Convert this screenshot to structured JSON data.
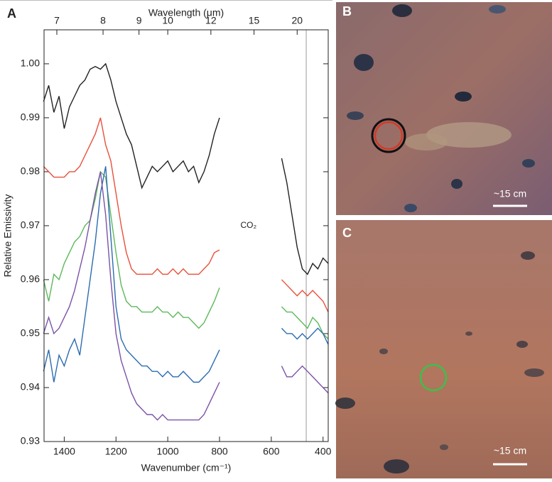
{
  "chart_data": {
    "type": "line",
    "x2label": "Wavelength (μm)",
    "xlabel": "Wavenumber (cm⁻¹)",
    "ylabel": "Relative Emissivity",
    "annotation": {
      "text": "CO₂",
      "x": 688,
      "y": 0.97
    },
    "vlines": [
      465
    ],
    "x": [
      1480,
      1460,
      1440,
      1420,
      1400,
      1380,
      1360,
      1340,
      1320,
      1300,
      1280,
      1260,
      1240,
      1220,
      1200,
      1180,
      1160,
      1140,
      1120,
      1100,
      1080,
      1060,
      1040,
      1020,
      1000,
      980,
      960,
      940,
      920,
      900,
      880,
      860,
      840,
      820,
      800,
      680,
      560,
      540,
      520,
      500,
      480,
      460,
      440,
      420,
      400,
      380
    ],
    "series": [
      {
        "color": "#222222",
        "values": [
          0.993,
          0.996,
          0.991,
          0.994,
          0.988,
          0.992,
          0.994,
          0.996,
          0.997,
          0.999,
          0.9995,
          0.999,
          1.0,
          0.997,
          0.993,
          0.99,
          0.987,
          0.985,
          0.981,
          0.977,
          0.979,
          0.981,
          0.98,
          0.981,
          0.982,
          0.98,
          0.981,
          0.982,
          0.98,
          0.981,
          0.978,
          0.98,
          0.983,
          0.987,
          0.99,
          null,
          0.9825,
          0.978,
          0.972,
          0.966,
          0.962,
          0.961,
          0.963,
          0.962,
          0.964,
          0.963
        ]
      },
      {
        "color": "#e8503a",
        "values": [
          0.981,
          0.98,
          0.979,
          0.979,
          0.979,
          0.98,
          0.98,
          0.981,
          0.983,
          0.985,
          0.987,
          0.99,
          0.985,
          0.982,
          0.976,
          0.97,
          0.965,
          0.962,
          0.961,
          0.961,
          0.961,
          0.961,
          0.962,
          0.961,
          0.961,
          0.962,
          0.961,
          0.962,
          0.961,
          0.961,
          0.961,
          0.962,
          0.963,
          0.965,
          0.9655,
          null,
          0.96,
          0.959,
          0.958,
          0.957,
          0.958,
          0.957,
          0.958,
          0.957,
          0.956,
          0.954
        ]
      },
      {
        "color": "#5cb85c",
        "values": [
          0.96,
          0.956,
          0.961,
          0.96,
          0.963,
          0.965,
          0.967,
          0.968,
          0.97,
          0.971,
          0.975,
          0.98,
          0.979,
          0.972,
          0.965,
          0.959,
          0.956,
          0.955,
          0.955,
          0.954,
          0.954,
          0.954,
          0.955,
          0.954,
          0.954,
          0.953,
          0.954,
          0.953,
          0.953,
          0.952,
          0.951,
          0.952,
          0.954,
          0.956,
          0.9585,
          null,
          0.955,
          0.954,
          0.954,
          0.953,
          0.952,
          0.951,
          0.953,
          0.952,
          0.95,
          0.949
        ]
      },
      {
        "color": "#2b6cb0",
        "values": [
          0.943,
          0.947,
          0.941,
          0.946,
          0.944,
          0.947,
          0.949,
          0.946,
          0.953,
          0.96,
          0.967,
          0.976,
          0.981,
          0.968,
          0.955,
          0.949,
          0.947,
          0.946,
          0.945,
          0.944,
          0.944,
          0.943,
          0.943,
          0.942,
          0.943,
          0.942,
          0.942,
          0.943,
          0.942,
          0.941,
          0.941,
          0.942,
          0.943,
          0.945,
          0.947,
          null,
          0.951,
          0.95,
          0.95,
          0.949,
          0.95,
          0.949,
          0.95,
          0.951,
          0.95,
          0.948
        ]
      },
      {
        "color": "#7b52a6",
        "values": [
          0.95,
          0.953,
          0.95,
          0.951,
          0.953,
          0.955,
          0.958,
          0.962,
          0.966,
          0.971,
          0.976,
          0.98,
          0.972,
          0.96,
          0.95,
          0.945,
          0.942,
          0.939,
          0.937,
          0.936,
          0.935,
          0.935,
          0.934,
          0.935,
          0.934,
          0.934,
          0.934,
          0.934,
          0.934,
          0.934,
          0.934,
          0.935,
          0.937,
          0.939,
          0.941,
          null,
          0.944,
          0.942,
          0.942,
          0.943,
          0.944,
          0.943,
          0.942,
          0.941,
          0.94,
          0.939
        ]
      }
    ],
    "xlim": [
      1478,
      380
    ],
    "ylim": [
      0.93,
      1.0063
    ],
    "xticks": [
      1400,
      1200,
      1000,
      800,
      600,
      400
    ],
    "x2ticks": [
      7,
      8,
      9,
      10,
      12,
      15,
      20
    ],
    "yticks": [
      0.93,
      0.94,
      0.95,
      0.96,
      0.97,
      0.98,
      0.99,
      {
        "value": 1,
        "label": "1.00"
      }
    ]
  },
  "panels": {
    "a": {
      "label": "A"
    },
    "b": {
      "label": "B",
      "scale_label": "~15 cm"
    },
    "c": {
      "label": "C",
      "scale_label": "~15 cm"
    }
  }
}
